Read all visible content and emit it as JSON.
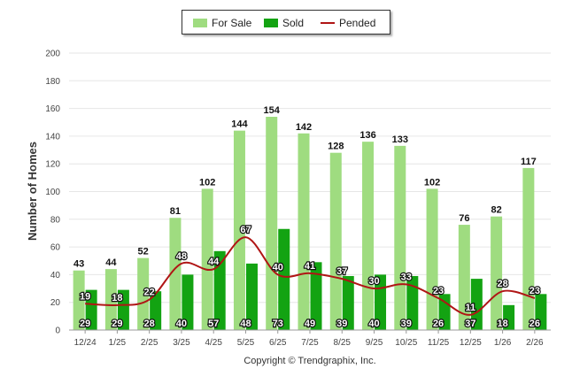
{
  "chart_data": {
    "type": "bar",
    "categories": [
      "12/24",
      "1/25",
      "2/25",
      "3/25",
      "4/25",
      "5/25",
      "6/25",
      "7/25",
      "8/25",
      "9/25",
      "10/25",
      "11/25",
      "12/25",
      "1/26",
      "2/26"
    ],
    "series": [
      {
        "name": "For Sale",
        "kind": "bar",
        "color": "#9fdc80",
        "values": [
          43,
          44,
          52,
          81,
          102,
          144,
          154,
          142,
          128,
          136,
          133,
          102,
          76,
          82,
          117
        ]
      },
      {
        "name": "Sold",
        "kind": "bar",
        "color": "#13a312",
        "values": [
          29,
          29,
          28,
          40,
          57,
          48,
          73,
          49,
          39,
          40,
          39,
          26,
          37,
          18,
          26
        ]
      },
      {
        "name": "Pended",
        "kind": "line",
        "color": "#b01515",
        "values": [
          19,
          18,
          22,
          48,
          44,
          67,
          40,
          41,
          37,
          30,
          33,
          23,
          11,
          28,
          23
        ]
      }
    ],
    "ylabel": "Number of Homes",
    "xlabel": "",
    "ylim": [
      0,
      200
    ],
    "yticks": [
      0,
      20,
      40,
      60,
      80,
      100,
      120,
      140,
      160,
      180,
      200
    ],
    "legend": "top-center",
    "grid": true
  },
  "legend": {
    "for_sale": "For Sale",
    "sold": "Sold",
    "pended": "Pended"
  },
  "copyright": "Copyright © Trendgraphix, Inc."
}
